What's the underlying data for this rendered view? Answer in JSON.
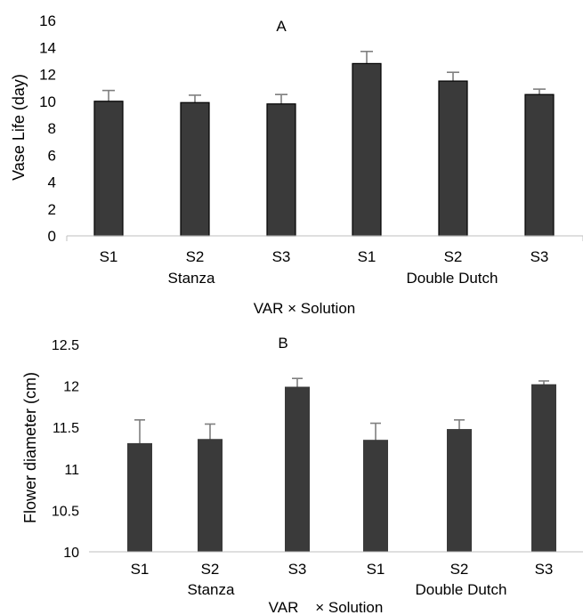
{
  "chart_data": [
    {
      "type": "bar",
      "panel_label": "A",
      "categories": [
        "S1",
        "S2",
        "S3",
        "S1",
        "S2",
        "S3"
      ],
      "groups": [
        "Stanza",
        "Double Dutch"
      ],
      "values": [
        10.0,
        9.9,
        9.8,
        12.8,
        11.5,
        10.5
      ],
      "errors": [
        0.8,
        0.55,
        0.7,
        0.9,
        0.65,
        0.4
      ],
      "ylabel": "Vase Life (day)",
      "xlabel": "VAR × Solution",
      "ylim": [
        0,
        16
      ],
      "yticks": [
        "0",
        "2",
        "4",
        "6",
        "8",
        "10",
        "12",
        "14",
        "16"
      ],
      "bar_color": "#3a3a3a",
      "error_color": "#7f7f7f",
      "grid": false,
      "legend": "none"
    },
    {
      "type": "bar",
      "panel_label": "B",
      "categories": [
        "S1",
        "S2",
        "S3",
        "S1",
        "S2",
        "S3"
      ],
      "groups": [
        "Stanza",
        "Double Dutch"
      ],
      "values": [
        11.31,
        11.36,
        11.99,
        11.35,
        11.48,
        12.02
      ],
      "errors": [
        0.28,
        0.18,
        0.1,
        0.2,
        0.11,
        0.04
      ],
      "ylabel": "Flower diameter (cm)",
      "xlabel": "VAR    × Solution",
      "ylim": [
        10,
        12.5
      ],
      "yticks": [
        "10",
        "10.5",
        "11",
        "11.5",
        "12",
        "12.5"
      ],
      "bar_color": "#3a3a3a",
      "error_color": "#7f7f7f",
      "grid": false,
      "legend": "none"
    }
  ]
}
